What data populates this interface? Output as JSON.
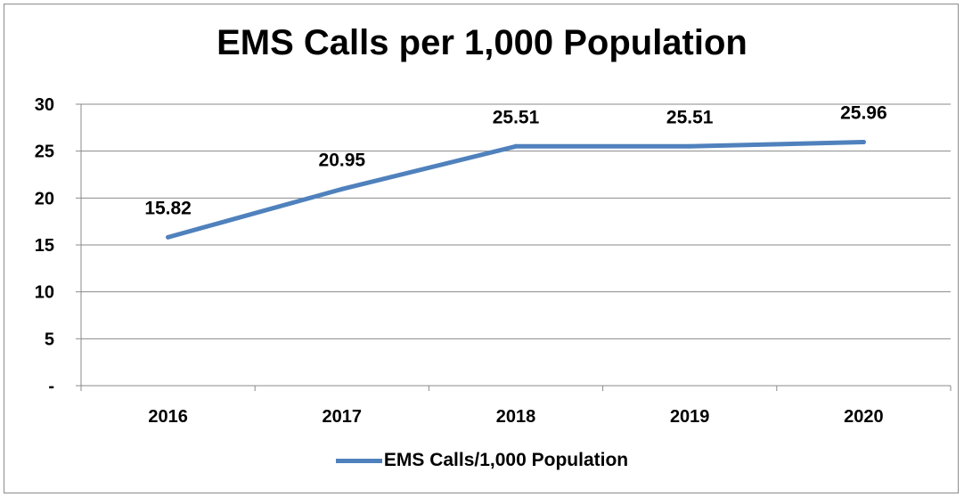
{
  "chart_data": {
    "type": "line",
    "title": "EMS Calls per 1,000 Population",
    "categories": [
      "2016",
      "2017",
      "2018",
      "2019",
      "2020"
    ],
    "series": [
      {
        "name": "EMS Calls/1,000 Population",
        "values": [
          15.82,
          20.95,
          25.51,
          25.51,
          25.96
        ],
        "data_labels": [
          "15.82",
          "20.95",
          "25.51",
          "25.51",
          "25.96"
        ],
        "color": "#4F81BD"
      }
    ],
    "y_ticks": [
      0,
      5,
      10,
      15,
      20,
      25,
      30
    ],
    "y_tick_labels": [
      "-",
      "5",
      "10",
      "15",
      "20",
      "25",
      "30"
    ],
    "ylim": [
      0,
      30
    ],
    "grid": true,
    "legend_position": "bottom"
  }
}
